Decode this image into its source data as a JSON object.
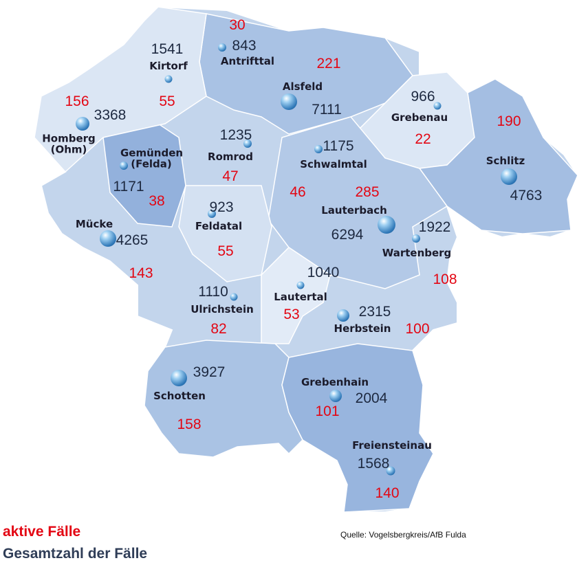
{
  "municipalities": [
    {
      "name": "Kirtorf",
      "total": 1541,
      "active": 55
    },
    {
      "name": "Antrifttal",
      "total": 843,
      "active": 30
    },
    {
      "name": "Alsfeld",
      "total": 7111,
      "active": 221
    },
    {
      "name": "Grebenau",
      "total": 966,
      "active": 22
    },
    {
      "name": "Schlitz",
      "total": 4763,
      "active": 190
    },
    {
      "name": "Homberg (Ohm)",
      "total": 3368,
      "active": 156
    },
    {
      "name": "Gemünden (Felda)",
      "total": 1171,
      "active": 38
    },
    {
      "name": "Romrod",
      "total": 1235,
      "active": 47
    },
    {
      "name": "Schwalmtal",
      "total": 1175,
      "active": 46
    },
    {
      "name": "Lauterbach",
      "total": 6294,
      "active": 285
    },
    {
      "name": "Wartenberg",
      "total": 1922,
      "active": 108
    },
    {
      "name": "Mücke",
      "total": 4265,
      "active": 143
    },
    {
      "name": "Feldatal",
      "total": 923,
      "active": 55
    },
    {
      "name": "Ulrichstein",
      "total": 1110,
      "active": 82
    },
    {
      "name": "Lautertal",
      "total": 1040,
      "active": 53
    },
    {
      "name": "Herbstein",
      "total": 2315,
      "active": 100
    },
    {
      "name": "Schotten",
      "total": 3927,
      "active": 158
    },
    {
      "name": "Grebenhain",
      "total": 2004,
      "active": 101
    },
    {
      "name": "Freiensteinau",
      "total": 1568,
      "active": 140
    }
  ],
  "legend": {
    "active": "aktive Fälle",
    "total": "Gesamtzahl der Fälle"
  },
  "source": "Quelle: Vogelsbergkreis/AfB Fulda"
}
